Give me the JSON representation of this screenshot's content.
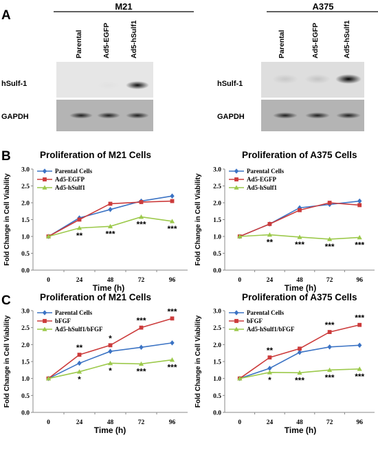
{
  "panel_a": {
    "letter": "A",
    "blots": [
      {
        "cell_line": "M21",
        "lanes": [
          "Parental",
          "Ad5-EGFP",
          "Ad5-hSulf1"
        ],
        "rows": [
          {
            "label": "hSulf-1",
            "band_intensity": [
              0.0,
              0.02,
              0.95
            ]
          },
          {
            "label": "GAPDH",
            "band_intensity": [
              0.85,
              0.85,
              0.85
            ]
          }
        ]
      },
      {
        "cell_line": "A375",
        "lanes": [
          "Parental",
          "Ad5-EGFP",
          "Ad5-hSulf1"
        ],
        "rows": [
          {
            "label": "hSulf-1",
            "band_intensity": [
              0.1,
              0.12,
              1.0
            ]
          },
          {
            "label": "GAPDH",
            "band_intensity": [
              0.85,
              0.85,
              0.85
            ]
          }
        ]
      }
    ]
  },
  "panel_b_letter": "B",
  "panel_c_letter": "C",
  "chart_data": [
    {
      "type": "line",
      "panel": "B",
      "title": "Proliferation of M21 Cells",
      "xlabel": "Time (h)",
      "ylabel": "Fold Change in Cell Viability",
      "x": [
        "0",
        "24",
        "48",
        "72",
        "96"
      ],
      "yticks": [
        "0.0",
        "0.5",
        "1.0",
        "1.5",
        "2.0",
        "2.5",
        "3.0"
      ],
      "ylim": [
        0,
        3
      ],
      "legend_position": "top-left",
      "series": [
        {
          "name": "Parental Cells",
          "color": "#3b73c4",
          "marker": "diamond",
          "values": [
            1.0,
            1.55,
            1.8,
            2.05,
            2.2
          ]
        },
        {
          "name": "Ad5-EGFP",
          "color": "#cc3b3b",
          "marker": "square",
          "values": [
            1.0,
            1.5,
            1.97,
            2.02,
            2.05
          ]
        },
        {
          "name": "Ad5-hSulf1",
          "color": "#9cc94b",
          "marker": "triangle",
          "values": [
            1.0,
            1.25,
            1.3,
            1.58,
            1.45
          ]
        }
      ],
      "significance": [
        {
          "x_index": 1,
          "label": "**",
          "anchor": 1.25,
          "side": "below"
        },
        {
          "x_index": 2,
          "label": "***",
          "anchor": 1.3,
          "side": "below"
        },
        {
          "x_index": 3,
          "label": "***",
          "anchor": 1.58,
          "side": "below"
        },
        {
          "x_index": 4,
          "label": "***",
          "anchor": 1.45,
          "side": "below"
        }
      ]
    },
    {
      "type": "line",
      "panel": "B",
      "title": "Proliferation of A375 Cells",
      "xlabel": "Time (h)",
      "ylabel": "Fold Change in Cell Viability",
      "x": [
        "0",
        "24",
        "48",
        "72",
        "96"
      ],
      "yticks": [
        "0.0",
        "0.5",
        "1.0",
        "1.5",
        "2.0",
        "2.5",
        "3.0"
      ],
      "ylim": [
        0,
        3
      ],
      "legend_position": "top-left",
      "series": [
        {
          "name": "Parental Cells",
          "color": "#3b73c4",
          "marker": "diamond",
          "values": [
            1.0,
            1.37,
            1.85,
            1.95,
            2.05
          ]
        },
        {
          "name": "Ad5-EGFP",
          "color": "#cc3b3b",
          "marker": "square",
          "values": [
            1.0,
            1.37,
            1.78,
            2.0,
            1.93
          ]
        },
        {
          "name": "Ad5-hSulf1",
          "color": "#9cc94b",
          "marker": "triangle",
          "values": [
            1.0,
            1.05,
            0.98,
            0.92,
            0.97
          ]
        }
      ],
      "significance": [
        {
          "x_index": 1,
          "label": "**",
          "anchor": 1.05,
          "side": "below"
        },
        {
          "x_index": 2,
          "label": "***",
          "anchor": 0.98,
          "side": "below"
        },
        {
          "x_index": 3,
          "label": "***",
          "anchor": 0.92,
          "side": "below"
        },
        {
          "x_index": 4,
          "label": "***",
          "anchor": 0.97,
          "side": "below"
        }
      ]
    },
    {
      "type": "line",
      "panel": "C",
      "title": "Proliferation of M21 Cells",
      "xlabel": "Time (h)",
      "ylabel": "Fold Change in Cell Viability",
      "x": [
        "0",
        "24",
        "48",
        "72",
        "96"
      ],
      "yticks": [
        "0.0",
        "0.5",
        "1.0",
        "1.5",
        "2.0",
        "2.5",
        "3.0"
      ],
      "ylim": [
        0,
        3
      ],
      "legend_position": "top-left",
      "series": [
        {
          "name": "Parental Cells",
          "color": "#3b73c4",
          "marker": "diamond",
          "values": [
            1.0,
            1.45,
            1.8,
            1.92,
            2.05
          ]
        },
        {
          "name": "bFGF",
          "color": "#cc3b3b",
          "marker": "square",
          "values": [
            1.0,
            1.7,
            1.98,
            2.5,
            2.77
          ]
        },
        {
          "name": "Ad5-hSulf1/bFGF",
          "color": "#9cc94b",
          "marker": "triangle",
          "values": [
            1.0,
            1.2,
            1.45,
            1.43,
            1.55
          ]
        }
      ],
      "significance": [
        {
          "x_index": 1,
          "label": "**",
          "anchor": 1.7,
          "side": "above"
        },
        {
          "x_index": 1,
          "label": "*",
          "anchor": 1.2,
          "side": "below"
        },
        {
          "x_index": 2,
          "label": "*",
          "anchor": 1.98,
          "side": "above"
        },
        {
          "x_index": 2,
          "label": "*",
          "anchor": 1.45,
          "side": "below"
        },
        {
          "x_index": 3,
          "label": "***",
          "anchor": 2.5,
          "side": "above"
        },
        {
          "x_index": 3,
          "label": "***",
          "anchor": 1.43,
          "side": "below"
        },
        {
          "x_index": 4,
          "label": "***",
          "anchor": 2.77,
          "side": "above"
        },
        {
          "x_index": 4,
          "label": "***",
          "anchor": 1.55,
          "side": "below"
        }
      ]
    },
    {
      "type": "line",
      "panel": "C",
      "title": "Proliferation of A375 Cells",
      "xlabel": "Time (h)",
      "ylabel": "Fold Change in Cell Viability",
      "x": [
        "0",
        "24",
        "48",
        "72",
        "96"
      ],
      "yticks": [
        "0.0",
        "0.5",
        "1.0",
        "1.5",
        "2.0",
        "2.5",
        "3.0"
      ],
      "ylim": [
        0,
        3
      ],
      "legend_position": "top-left",
      "series": [
        {
          "name": "Parental Cells",
          "color": "#3b73c4",
          "marker": "diamond",
          "values": [
            1.0,
            1.3,
            1.77,
            1.93,
            1.98
          ]
        },
        {
          "name": "bFGF",
          "color": "#cc3b3b",
          "marker": "square",
          "values": [
            1.0,
            1.62,
            1.88,
            2.37,
            2.58
          ]
        },
        {
          "name": "Ad5-hSulf1/bFGF",
          "color": "#9cc94b",
          "marker": "triangle",
          "values": [
            1.0,
            1.18,
            1.17,
            1.25,
            1.28
          ]
        }
      ],
      "significance": [
        {
          "x_index": 1,
          "label": "**",
          "anchor": 1.62,
          "side": "above"
        },
        {
          "x_index": 1,
          "label": "*",
          "anchor": 1.18,
          "side": "below"
        },
        {
          "x_index": 2,
          "label": "***",
          "anchor": 1.17,
          "side": "below"
        },
        {
          "x_index": 3,
          "label": "***",
          "anchor": 2.37,
          "side": "above"
        },
        {
          "x_index": 3,
          "label": "***",
          "anchor": 1.25,
          "side": "below"
        },
        {
          "x_index": 4,
          "label": "***",
          "anchor": 2.58,
          "side": "above"
        },
        {
          "x_index": 4,
          "label": "***",
          "anchor": 1.28,
          "side": "below"
        }
      ]
    }
  ]
}
